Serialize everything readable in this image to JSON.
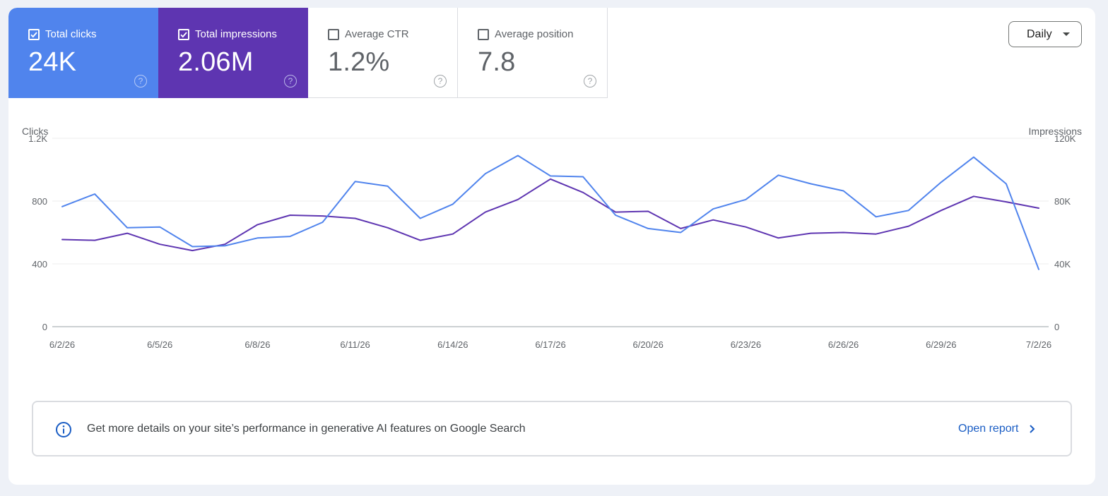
{
  "metrics": [
    {
      "label": "Total clicks",
      "value": "24K",
      "checked": true
    },
    {
      "label": "Total impressions",
      "value": "2.06M",
      "checked": true
    },
    {
      "label": "Average CTR",
      "value": "1.2%",
      "checked": false
    },
    {
      "label": "Average position",
      "value": "7.8",
      "checked": false
    }
  ],
  "granularity": {
    "selected": "Daily"
  },
  "help_glyph": "?",
  "colors": {
    "clicks": "#5084ed",
    "impressions": "#5e35b1",
    "grid": "#ececec",
    "axis": "#9aa0a6"
  },
  "chart_data": {
    "type": "line",
    "ylabel_left": "Clicks",
    "ylabel_right": "Impressions",
    "left_ticks": [
      "0",
      "400",
      "800",
      "1.2K"
    ],
    "right_ticks": [
      "0",
      "40K",
      "80K",
      "120K"
    ],
    "ylim_left": [
      0,
      1200
    ],
    "ylim_right": [
      0,
      120000
    ],
    "x_tick_labels": [
      "6/2/26",
      "6/5/26",
      "6/8/26",
      "6/11/26",
      "6/14/26",
      "6/17/26",
      "6/20/26",
      "6/23/26",
      "6/26/26",
      "6/29/26",
      "7/2/26"
    ],
    "dates": [
      "6/2/26",
      "6/3/26",
      "6/4/26",
      "6/5/26",
      "6/6/26",
      "6/7/26",
      "6/8/26",
      "6/9/26",
      "6/10/26",
      "6/11/26",
      "6/12/26",
      "6/13/26",
      "6/14/26",
      "6/15/26",
      "6/16/26",
      "6/17/26",
      "6/18/26",
      "6/19/26",
      "6/20/26",
      "6/21/26",
      "6/22/26",
      "6/23/26",
      "6/24/26",
      "6/25/26",
      "6/26/26",
      "6/27/26",
      "6/28/26",
      "6/29/26",
      "6/30/26",
      "7/1/26",
      "7/2/26"
    ],
    "series": [
      {
        "name": "Total clicks",
        "axis": "left",
        "values": [
          765,
          845,
          630,
          635,
          510,
          515,
          565,
          575,
          665,
          925,
          895,
          690,
          780,
          975,
          1090,
          960,
          955,
          710,
          625,
          600,
          750,
          810,
          965,
          910,
          865,
          700,
          740,
          920,
          1080,
          910,
          365
        ]
      },
      {
        "name": "Total impressions",
        "axis": "right",
        "values": [
          55500,
          55000,
          59500,
          52500,
          48500,
          52500,
          65000,
          71000,
          70500,
          69000,
          63000,
          55000,
          59000,
          73000,
          81000,
          94000,
          85500,
          73000,
          73500,
          62500,
          68000,
          63500,
          56500,
          59500,
          60000,
          59000,
          64000,
          74000,
          83000,
          79500,
          75500
        ]
      }
    ],
    "grid": true
  },
  "banner": {
    "text": "Get more details on your site’s performance in generative AI features on Google Search",
    "link": "Open report"
  }
}
